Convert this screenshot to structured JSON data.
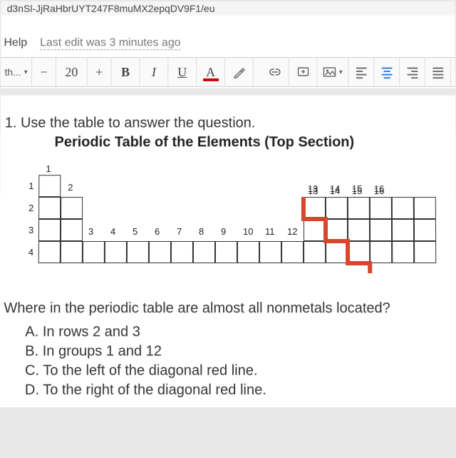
{
  "url_fragment": "d3nSl-JjRaHbrUYT247F8muMX2epqDV9F1/eu",
  "menu": {
    "help": "Help",
    "edit_status": "Last edit was 3 minutes ago"
  },
  "toolbar": {
    "font_dropdown": "th...",
    "minus": "−",
    "size": "20",
    "plus": "+",
    "bold": "B",
    "italic": "I",
    "underline": "U",
    "text_color": "A",
    "text_color_swatch": "#cc0000",
    "paint": "✎",
    "link": "⊂⊃",
    "insert_plus": "+",
    "image": "▣",
    "align_default_color": "#5f6368",
    "align_active_color": "#1a73e8"
  },
  "doc": {
    "prompt": "1.  Use the table to answer the question.",
    "table_title": "Periodic Table of the Elements (Top Section)",
    "question": "Where in the periodic table are almost all nonmetals located?",
    "answers": {
      "a": "A.  In rows 2 and 3",
      "b": "B.  In groups 1 and 12",
      "c": "C.  To the left of the diagonal red line.",
      "d": "D.  To the right of the diagonal red line."
    }
  },
  "periodic_table": {
    "cell_size": 31,
    "cell_border_color": "#333333",
    "cell_bg": "#ffffff",
    "col_labels_top_left": [
      "1"
    ],
    "col_labels_top_right": [
      "13",
      "14",
      "15",
      "16"
    ],
    "row_labels": [
      "1",
      "2",
      "3",
      "4"
    ],
    "mid_labels": [
      "2",
      "3",
      "4",
      "5",
      "6",
      "7",
      "8",
      "9",
      "10",
      "11",
      "12"
    ],
    "red_line_color": "#d9462b",
    "red_line_width": 6
  }
}
